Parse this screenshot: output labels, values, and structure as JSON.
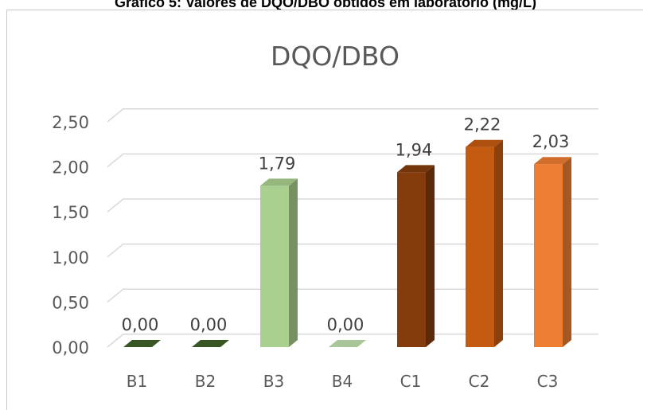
{
  "caption": "Gráfico 5: Valores de DQO/DBO obtidos em laboratório (mg/L)",
  "chart_data": {
    "type": "bar",
    "title": "DQO/DBO",
    "categories": [
      "B1",
      "B2",
      "B3",
      "B4",
      "C1",
      "C2",
      "C3"
    ],
    "values": [
      0.0,
      0.0,
      1.79,
      0.0,
      1.94,
      2.22,
      2.03
    ],
    "data_labels": [
      "0,00",
      "0,00",
      "1,79",
      "0,00",
      "1,94",
      "2,22",
      "2,03"
    ],
    "colors": [
      "#375623",
      "#375623",
      "#a9d08e",
      "#a9c59a",
      "#843c0c",
      "#c55a11",
      "#ed7d31"
    ],
    "ylim": [
      0,
      2.5
    ],
    "yticks": [
      {
        "value": 0.0,
        "label": "0,00"
      },
      {
        "value": 0.5,
        "label": "0,50"
      },
      {
        "value": 1.0,
        "label": "1,00"
      },
      {
        "value": 1.5,
        "label": "1,50"
      },
      {
        "value": 2.0,
        "label": "2,00"
      },
      {
        "value": 2.5,
        "label": "2,50"
      }
    ],
    "xlabel": "",
    "ylabel": "",
    "grid": true,
    "style": "3d-column",
    "legend": "none"
  }
}
